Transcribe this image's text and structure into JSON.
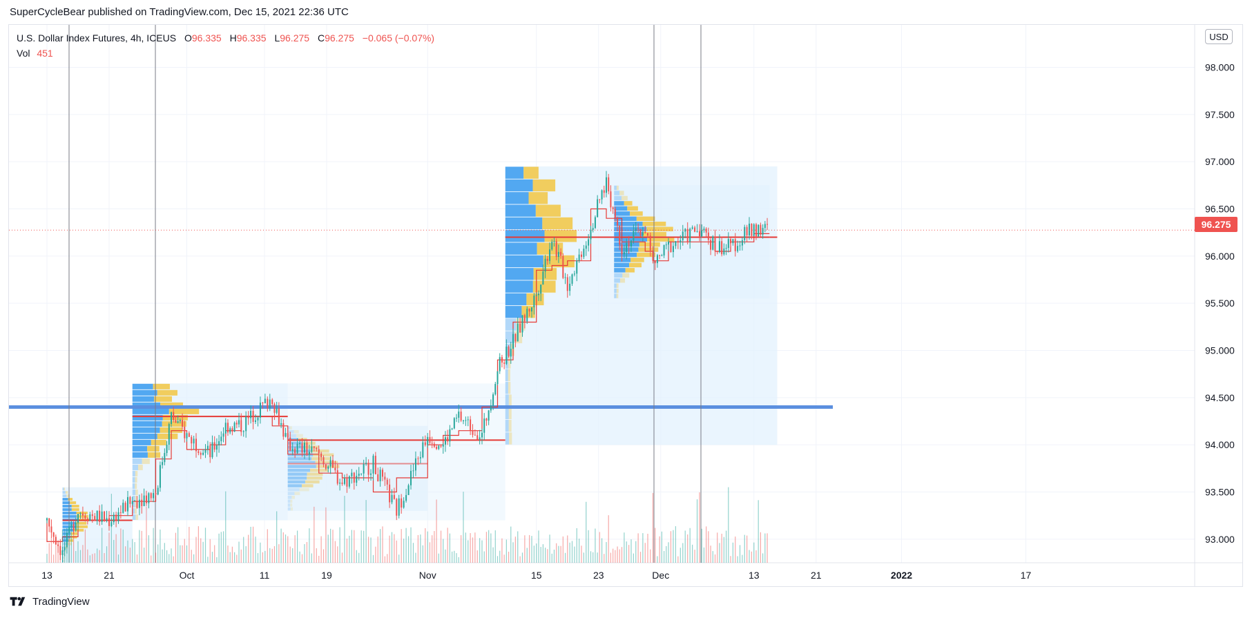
{
  "header": {
    "publish_text": "SuperCycleBear published on TradingView.com, Dec 15, 2021 22:36 UTC"
  },
  "legend": {
    "symbol": "U.S. Dollar Index Futures, 4h, ICEUS",
    "o_label": "O",
    "o_value": "96.335",
    "h_label": "H",
    "h_value": "96.335",
    "l_label": "L",
    "l_value": "96.275",
    "c_label": "C",
    "c_value": "96.275",
    "change": "−0.065 (−0.07%)",
    "vol_label": "Vol",
    "vol_value": "451"
  },
  "currency_button": "USD",
  "last_price_label": "96.275",
  "footer": {
    "brand": "TradingView"
  },
  "colors": {
    "up": "#26a69a",
    "down": "#ef5350",
    "hline": "#5b8fdf",
    "profile_blue": "#4aa3f0",
    "profile_yellow": "#f2c94c",
    "profile_area": "#e3f2fd",
    "poc_line": "#e53935",
    "grid": "#f0f3fa",
    "vline": "#787b86"
  },
  "chart_data": {
    "type": "candlestick",
    "symbol": "U.S. Dollar Index Futures",
    "timeframe": "4h",
    "ylim": [
      92.75,
      98.45
    ],
    "y_ticks": [
      "98.000",
      "97.500",
      "97.000",
      "96.500",
      "96.000",
      "95.500",
      "95.000",
      "94.500",
      "94.000",
      "93.500",
      "93.000"
    ],
    "x_ticks": [
      "13",
      "21",
      "Oct",
      "11",
      "19",
      "Nov",
      "15",
      "23",
      "Dec",
      "13",
      "21",
      "2022",
      "17"
    ],
    "bold_x_ticks": [
      "2022"
    ],
    "last_price": 96.275,
    "horizontal_line": 94.4,
    "price_path": [
      [
        "Sep 13",
        93.2
      ],
      [
        "Sep 15",
        92.85
      ],
      [
        "Sep 17",
        93.3
      ],
      [
        "Sep 21",
        93.2
      ],
      [
        "Sep 24",
        93.4
      ],
      [
        "Sep 27",
        93.5
      ],
      [
        "Sep 29",
        94.3
      ],
      [
        "Oct 1",
        94.1
      ],
      [
        "Oct 4",
        93.9
      ],
      [
        "Oct 6",
        94.2
      ],
      [
        "Oct 8",
        94.2
      ],
      [
        "Oct 12",
        94.5
      ],
      [
        "Oct 14",
        94.0
      ],
      [
        "Oct 18",
        93.9
      ],
      [
        "Oct 21",
        93.6
      ],
      [
        "Oct 25",
        93.8
      ],
      [
        "Oct 28",
        93.3
      ],
      [
        "Nov 1",
        94.1
      ],
      [
        "Nov 3",
        94.0
      ],
      [
        "Nov 5",
        94.3
      ],
      [
        "Nov 8",
        94.1
      ],
      [
        "Nov 10",
        94.8
      ],
      [
        "Nov 12",
        95.1
      ],
      [
        "Nov 15",
        95.6
      ],
      [
        "Nov 17",
        96.2
      ],
      [
        "Nov 19",
        95.7
      ],
      [
        "Nov 22",
        96.3
      ],
      [
        "Nov 24",
        96.8
      ],
      [
        "Nov 26",
        96.1
      ],
      [
        "Nov 29",
        96.3
      ],
      [
        "Nov 30",
        95.9
      ],
      [
        "Dec 2",
        96.1
      ],
      [
        "Dec 6",
        96.3
      ],
      [
        "Dec 8",
        96.1
      ],
      [
        "Dec 10",
        96.1
      ],
      [
        "Dec 13",
        96.3
      ],
      [
        "Dec 15",
        96.275
      ]
    ],
    "volume_profiles": [
      {
        "start": "Sep 15",
        "end": "Sep 24",
        "high": 93.55,
        "low": 92.75,
        "poc": 93.2
      },
      {
        "start": "Sep 24",
        "end": "Oct 14",
        "high": 94.65,
        "low": 93.2,
        "poc": 94.3
      },
      {
        "start": "Oct 14",
        "end": "Nov 1",
        "high": 94.2,
        "low": 93.3,
        "poc": 93.8
      },
      {
        "start": "Oct 14",
        "end": "Nov 11",
        "high": 94.65,
        "low": 93.2,
        "poc": 94.05
      },
      {
        "start": "Nov 11",
        "end": "Dec 16",
        "high": 96.95,
        "low": 94.0,
        "poc": 96.2
      },
      {
        "start": "Nov 25",
        "end": "Dec 15",
        "high": 96.75,
        "low": 95.55,
        "poc": 96.2
      }
    ]
  }
}
